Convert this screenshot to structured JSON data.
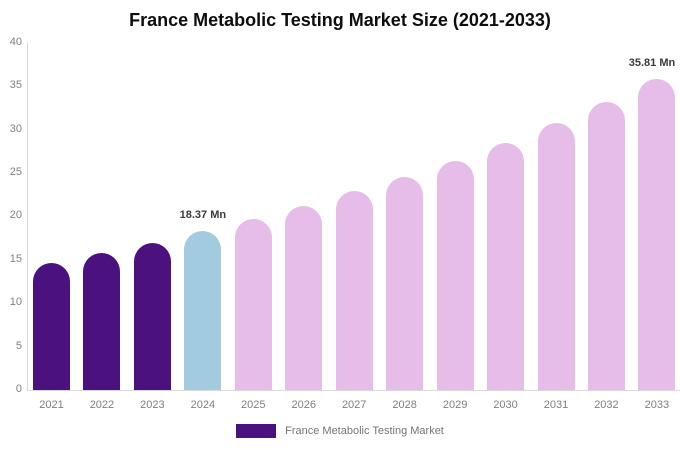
{
  "title": "France Metabolic Testing Market Size (2021-2033)",
  "chart_data": {
    "type": "bar",
    "title": "France Metabolic Testing Market Size (2021-2033)",
    "categories": [
      "2021",
      "2022",
      "2023",
      "2024",
      "2025",
      "2026",
      "2027",
      "2028",
      "2029",
      "2030",
      "2031",
      "2032",
      "2033"
    ],
    "values": [
      14.6,
      15.8,
      16.9,
      18.37,
      19.7,
      21.2,
      22.9,
      24.5,
      26.4,
      28.5,
      30.8,
      33.2,
      35.81
    ],
    "unit": "Mn",
    "bar_roles": [
      "historical",
      "historical",
      "historical",
      "base_year",
      "forecast",
      "forecast",
      "forecast",
      "forecast",
      "forecast",
      "forecast",
      "forecast",
      "forecast",
      "forecast"
    ],
    "colors": {
      "historical": "#4B127F",
      "base_year": "#A3CBE0",
      "forecast": "#E6BCE8",
      "axis_text": "#7F7F7F",
      "axis_line": "#D9D9D9",
      "data_label": "#3A3A3A",
      "title_text": "#0D0D0D",
      "background": "#FFFFFF"
    },
    "annotations": [
      {
        "category": "2024",
        "text": "18.37 Mn"
      },
      {
        "category": "2033",
        "text": "35.81 Mn"
      }
    ],
    "y_axis": {
      "min": 0,
      "max": 40,
      "ticks": [
        0,
        5,
        10,
        15,
        20,
        25,
        30,
        35,
        40
      ]
    },
    "ylim": [
      0,
      40
    ],
    "grid": false,
    "legend_position": "bottom",
    "legend": [
      {
        "label": "France Metabolic Testing Market",
        "color": "#4B127F"
      }
    ]
  }
}
